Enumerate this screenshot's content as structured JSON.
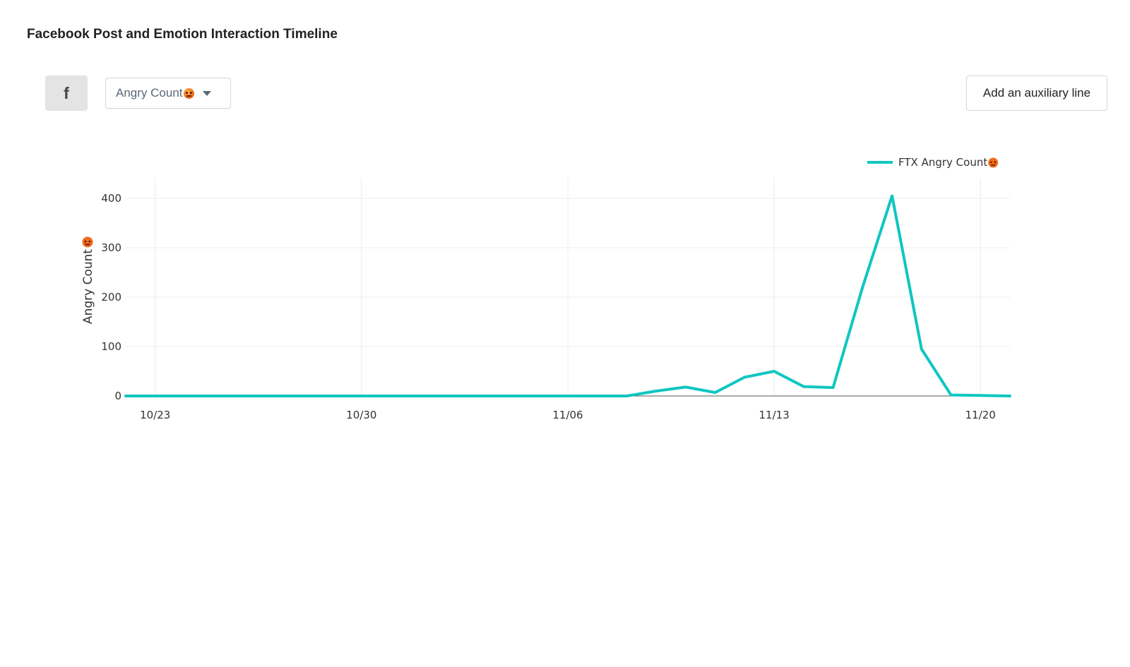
{
  "header": {
    "title": "Facebook Post and Emotion Interaction Timeline"
  },
  "toolbar": {
    "platform_icon": "facebook-icon",
    "platform_glyph": "f",
    "metric_select": {
      "selected": "Angry Count",
      "emoji_icon": "angry-face-icon"
    },
    "aux_button_label": "Add an auxiliary line"
  },
  "colors": {
    "series": "#0fc6c2",
    "grid": "#ececec",
    "zero_line": "#555555",
    "angry_emoji": "#f26a1b"
  },
  "chart_data": {
    "type": "line",
    "xlabel": "",
    "ylabel": "Angry Count",
    "ylabel_emoji_icon": "angry-face-icon",
    "xlim": [
      "2022-10-22",
      "2022-11-21"
    ],
    "ylim": [
      0,
      400
    ],
    "yticks": [
      0,
      100,
      200,
      300,
      400
    ],
    "ytick_labels": [
      "0",
      "100",
      "200",
      "300",
      "400"
    ],
    "xticks": [
      "2022-10-23",
      "2022-10-30",
      "2022-11-06",
      "2022-11-13",
      "2022-11-20"
    ],
    "xtick_labels": [
      "10/23",
      "10/30",
      "11/06",
      "11/13",
      "11/20"
    ],
    "grid": true,
    "legend_position": "top-right",
    "series": [
      {
        "name": "FTX Angry Count",
        "legend_emoji_icon": "angry-face-icon",
        "x": [
          "2022-10-22",
          "2022-10-23",
          "2022-10-24",
          "2022-10-25",
          "2022-10-26",
          "2022-10-27",
          "2022-10-28",
          "2022-10-29",
          "2022-10-30",
          "2022-10-31",
          "2022-11-01",
          "2022-11-02",
          "2022-11-03",
          "2022-11-04",
          "2022-11-05",
          "2022-11-06",
          "2022-11-07",
          "2022-11-08",
          "2022-11-09",
          "2022-11-10",
          "2022-11-11",
          "2022-11-12",
          "2022-11-13",
          "2022-11-14",
          "2022-11-15",
          "2022-11-16",
          "2022-11-17",
          "2022-11-18",
          "2022-11-19",
          "2022-11-20",
          "2022-11-21"
        ],
        "y": [
          0,
          0,
          0,
          0,
          0,
          0,
          0,
          0,
          0,
          0,
          0,
          0,
          0,
          0,
          0,
          0,
          0,
          0,
          10,
          18,
          7,
          38,
          50,
          19,
          17,
          220,
          405,
          95,
          2,
          1,
          0
        ]
      }
    ]
  }
}
